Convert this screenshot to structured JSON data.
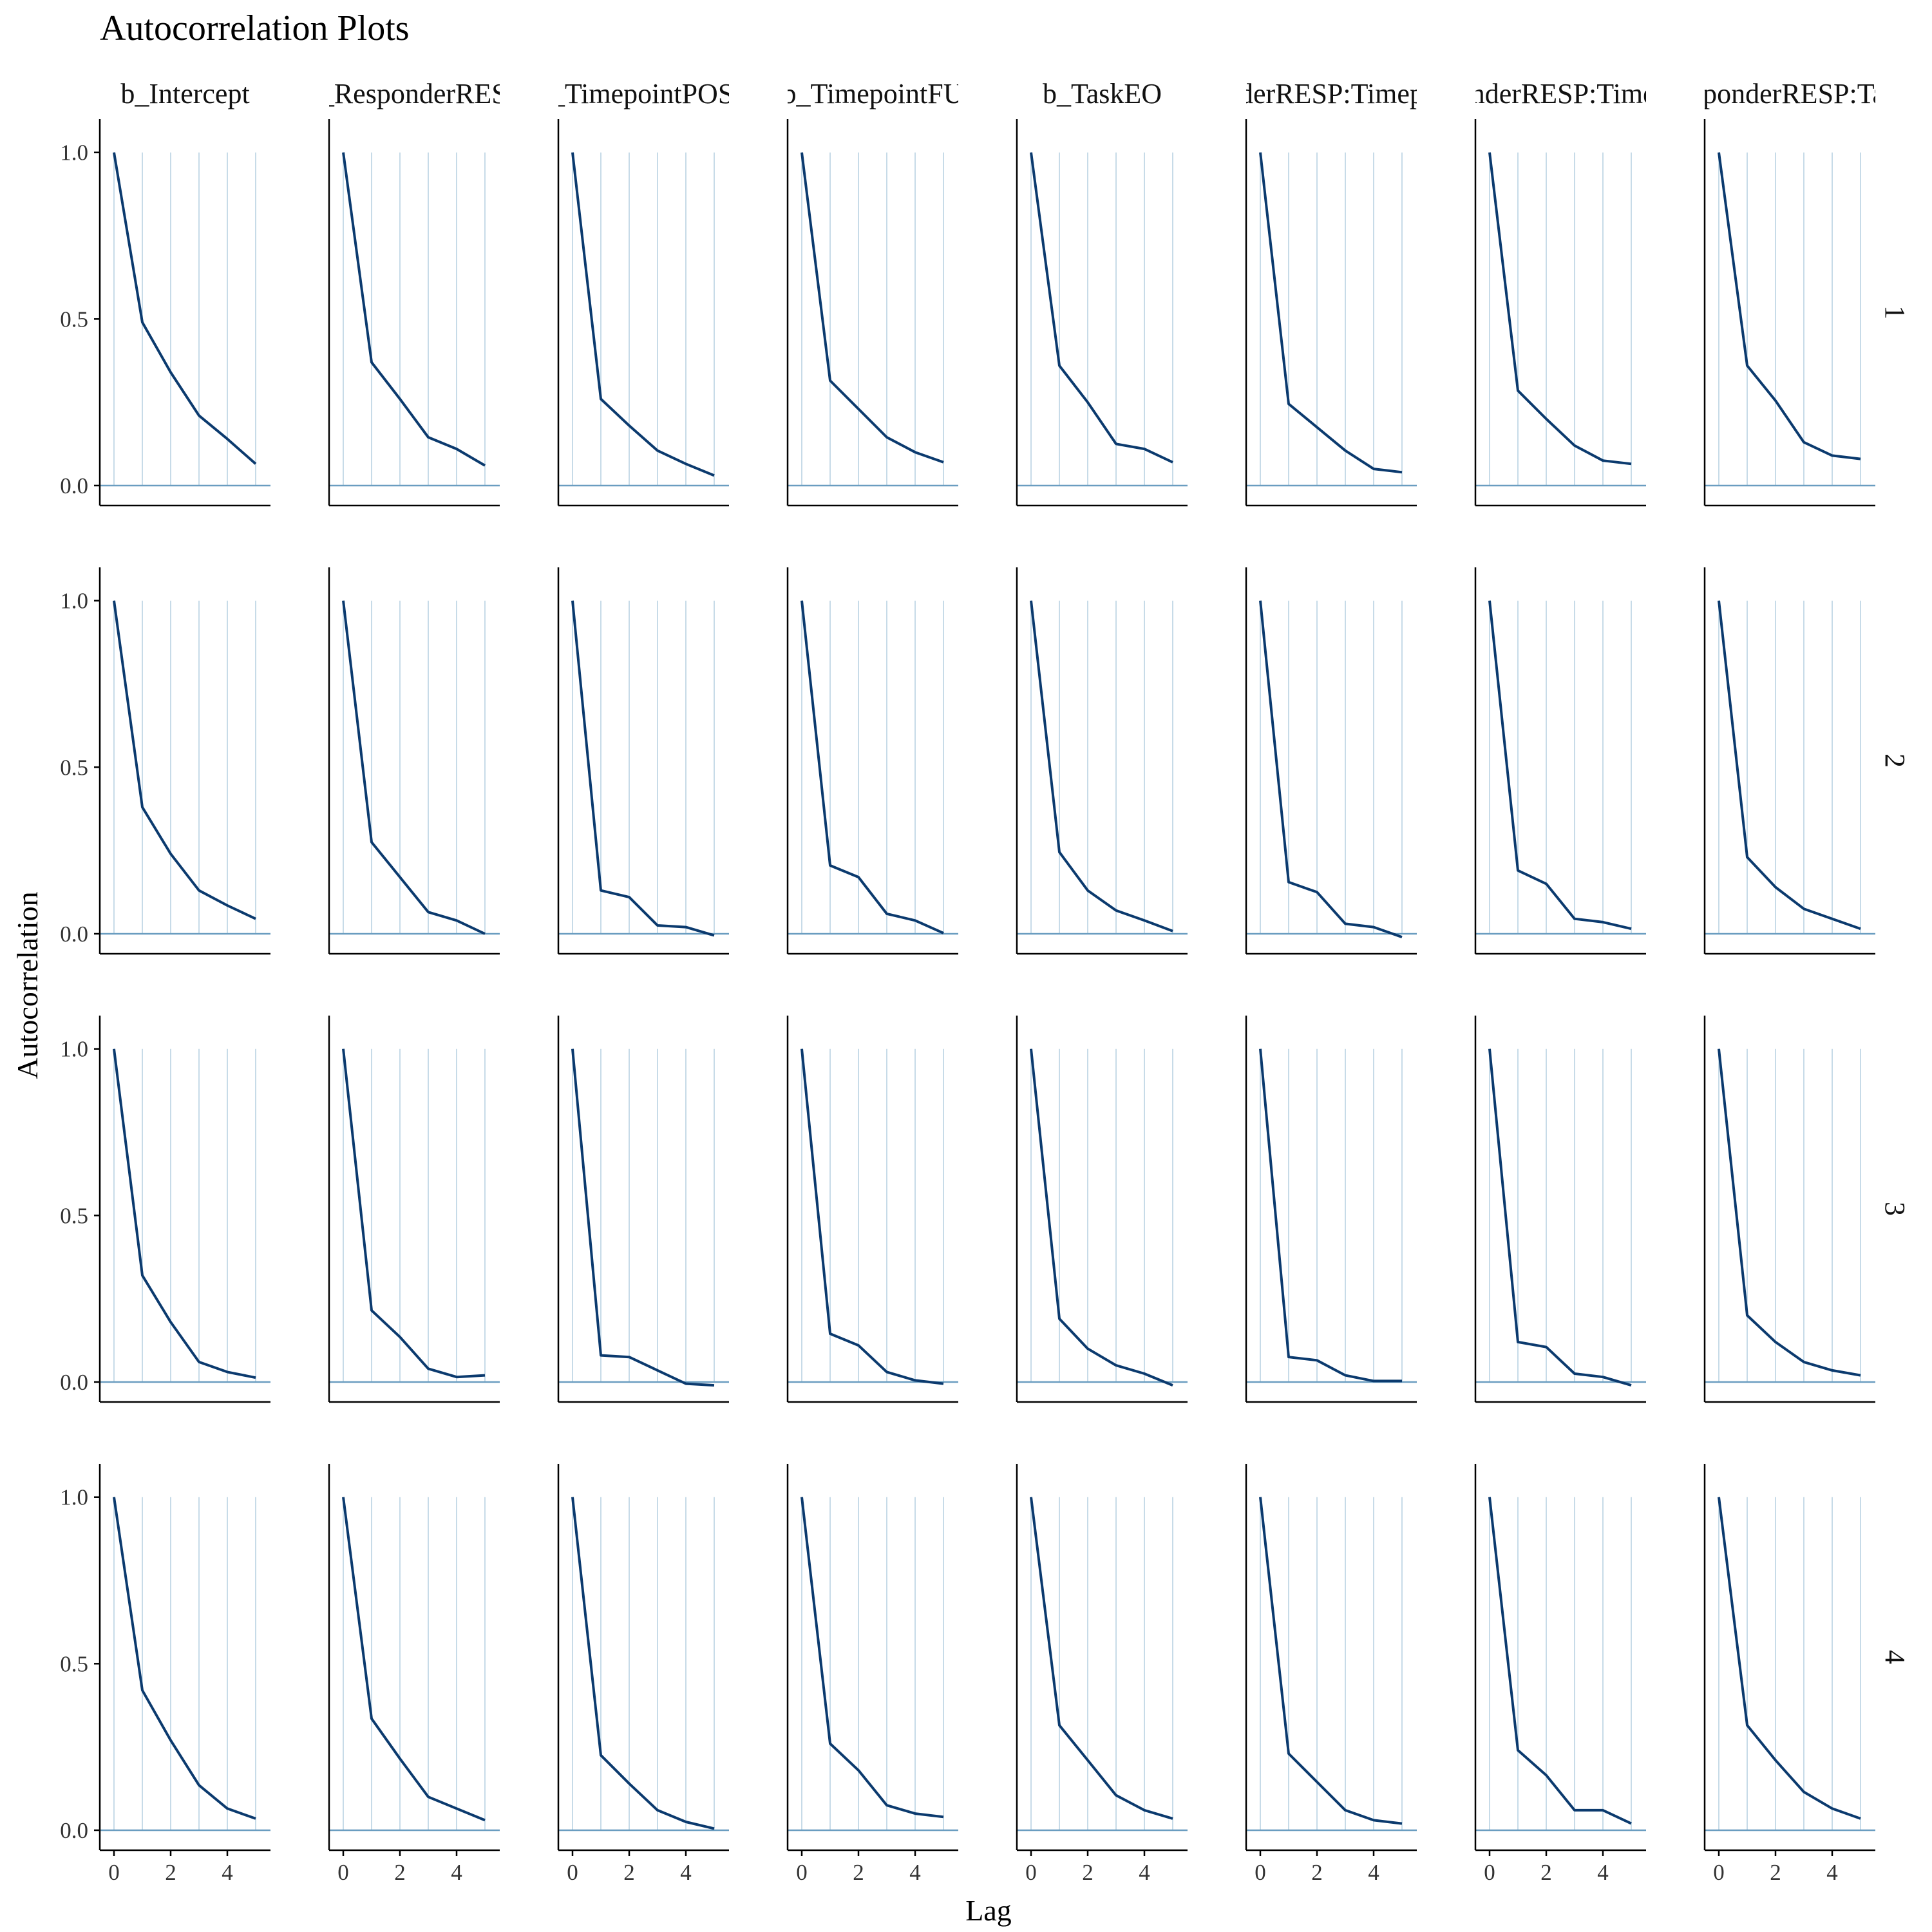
{
  "chart_data": {
    "type": "line",
    "title": "Autocorrelation Plots",
    "xlabel": "Lag",
    "ylabel": "Autocorrelation",
    "layout": "facet grid: columns = parameter, rows = chain",
    "columns": [
      "b_Intercept",
      "b_ResponderRESP",
      "b_TimepointPOST",
      "b_TimepointFU",
      "b_TaskEO",
      "b_ResponderRESP:TimepointPOST",
      "b_ResponderRESP:TimepointFU",
      "b_ResponderRESP:TaskEO"
    ],
    "rows": [
      "1",
      "2",
      "3",
      "4"
    ],
    "x": [
      0,
      1,
      2,
      3,
      4,
      5
    ],
    "x_ticks": [
      0,
      2,
      4
    ],
    "y_ticks": [
      0.0,
      0.5,
      1.0
    ],
    "y_tick_labels": [
      "0.0",
      "0.5",
      "1.0"
    ],
    "ylim": [
      -0.06,
      1.1
    ],
    "grid": false,
    "legend": "none",
    "colors": {
      "line": "#0b3a6e",
      "stem": "#c7dbe8",
      "zero_line": "#6a9dc0",
      "axis": "#000000"
    },
    "values": [
      [
        [
          1,
          0.49,
          0.34,
          0.21,
          0.14,
          0.065
        ],
        [
          1,
          0.38,
          0.24,
          0.13,
          0.085,
          0.045
        ],
        [
          1,
          0.32,
          0.18,
          0.06,
          0.03,
          0.013
        ],
        [
          1,
          0.42,
          0.27,
          0.135,
          0.065,
          0.035
        ]
      ],
      [
        [
          1,
          0.37,
          0.26,
          0.145,
          0.11,
          0.06
        ],
        [
          1,
          0.275,
          0.17,
          0.065,
          0.04,
          0.0
        ],
        [
          1,
          0.215,
          0.135,
          0.04,
          0.015,
          0.02
        ],
        [
          1,
          0.335,
          0.215,
          0.1,
          0.065,
          0.03
        ]
      ],
      [
        [
          1,
          0.26,
          0.18,
          0.105,
          0.065,
          0.03
        ],
        [
          1,
          0.13,
          0.11,
          0.025,
          0.02,
          -0.005
        ],
        [
          1,
          0.08,
          0.075,
          0.035,
          -0.005,
          -0.01
        ],
        [
          1,
          0.225,
          0.14,
          0.06,
          0.025,
          0.005
        ]
      ],
      [
        [
          1,
          0.315,
          0.23,
          0.145,
          0.1,
          0.07
        ],
        [
          1,
          0.205,
          0.17,
          0.06,
          0.04,
          0.002
        ],
        [
          1,
          0.145,
          0.11,
          0.03,
          0.005,
          -0.005
        ],
        [
          1,
          0.26,
          0.18,
          0.075,
          0.05,
          0.04
        ]
      ],
      [
        [
          1,
          0.36,
          0.25,
          0.125,
          0.11,
          0.07
        ],
        [
          1,
          0.245,
          0.13,
          0.07,
          0.04,
          0.008
        ],
        [
          1,
          0.19,
          0.1,
          0.05,
          0.025,
          -0.01
        ],
        [
          1,
          0.315,
          0.21,
          0.105,
          0.06,
          0.035
        ]
      ],
      [
        [
          1,
          0.245,
          0.175,
          0.105,
          0.05,
          0.04
        ],
        [
          1,
          0.155,
          0.125,
          0.03,
          0.02,
          -0.01
        ],
        [
          1,
          0.075,
          0.065,
          0.02,
          0.003,
          0.003
        ],
        [
          1,
          0.23,
          0.145,
          0.06,
          0.03,
          0.02
        ]
      ],
      [
        [
          1,
          0.285,
          0.2,
          0.12,
          0.075,
          0.065
        ],
        [
          1,
          0.19,
          0.15,
          0.045,
          0.035,
          0.015
        ],
        [
          1,
          0.12,
          0.105,
          0.025,
          0.015,
          -0.01
        ],
        [
          1,
          0.24,
          0.165,
          0.06,
          0.06,
          0.02
        ]
      ],
      [
        [
          1,
          0.36,
          0.255,
          0.13,
          0.09,
          0.08
        ],
        [
          1,
          0.23,
          0.14,
          0.075,
          0.045,
          0.015
        ],
        [
          1,
          0.2,
          0.12,
          0.06,
          0.035,
          0.02
        ],
        [
          1,
          0.315,
          0.21,
          0.115,
          0.065,
          0.035
        ]
      ]
    ]
  }
}
